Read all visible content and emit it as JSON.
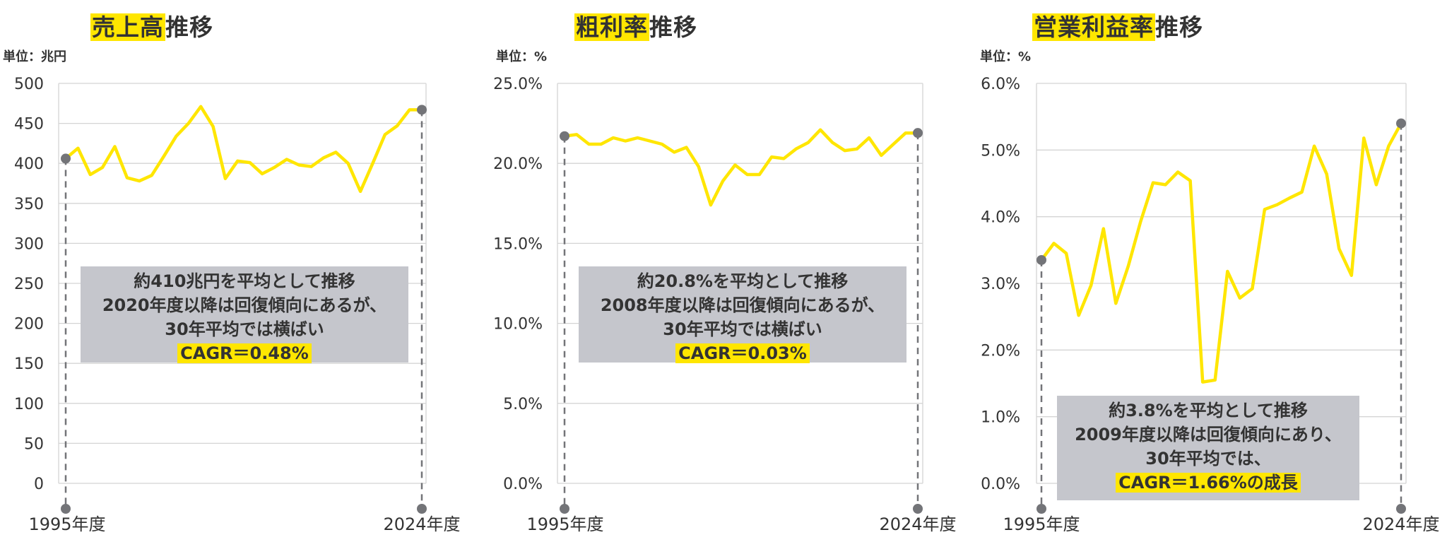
{
  "colors": {
    "line": "#ffe600",
    "highlight": "#ffe600",
    "marker": "#737478",
    "note_bg": "#c5c6cc",
    "text": "#333333",
    "grid": "#d4d4d4"
  },
  "x_labels": {
    "start": "1995年度",
    "end": "2024年度"
  },
  "panels": [
    {
      "title_highlight": "売上高",
      "title_rest": "推移",
      "unit": "単位：兆円",
      "note": {
        "lines": [
          "約410兆円を平均として推移",
          "2020年度以降は回復傾向にあるが、",
          "30年平均では横ばい"
        ],
        "cagr": "CAGR＝0.48%"
      }
    },
    {
      "title_highlight": "粗利率",
      "title_rest": "推移",
      "unit": "単位：%",
      "note": {
        "lines": [
          "約20.8%を平均として推移",
          "2008年度以降は回復傾向にあるが、",
          "30年平均では横ばい"
        ],
        "cagr": "CAGR＝0.03%"
      }
    },
    {
      "title_highlight": "営業利益率",
      "title_rest": "推移",
      "unit": "単位：%",
      "note": {
        "lines": [
          "約3.8%を平均として推移",
          "2009年度以降は回復傾向にあり、",
          "30年平均では、"
        ],
        "cagr": "CAGR＝1.66%の成長"
      }
    }
  ],
  "chart_data": [
    {
      "type": "line",
      "title": "売上高推移",
      "ylabel": "単位：兆円",
      "x_start": 1995,
      "x_end": 2024,
      "ylim": [
        0,
        500
      ],
      "yticks": [
        0,
        50,
        100,
        150,
        200,
        250,
        300,
        350,
        400,
        450,
        500
      ],
      "ytick_labels": [
        "0",
        "50",
        "100",
        "150",
        "200",
        "250",
        "300",
        "350",
        "400",
        "450",
        "500"
      ],
      "grid": true,
      "values": [
        406,
        419,
        386,
        395,
        421,
        382,
        378,
        385,
        409,
        434,
        450,
        471,
        446,
        381,
        403,
        401,
        387,
        395,
        405,
        398,
        396,
        407,
        414,
        400,
        365,
        400,
        436,
        447,
        467,
        467
      ]
    },
    {
      "type": "line",
      "title": "粗利率推移",
      "ylabel": "単位：%",
      "x_start": 1995,
      "x_end": 2024,
      "ylim": [
        0,
        25
      ],
      "yticks": [
        0,
        5,
        10,
        15,
        20,
        25
      ],
      "ytick_labels": [
        "0.0%",
        "5.0%",
        "10.0%",
        "15.0%",
        "20.0%",
        "25.0%"
      ],
      "grid": true,
      "values": [
        21.7,
        21.8,
        21.2,
        21.2,
        21.6,
        21.4,
        21.6,
        21.4,
        21.2,
        20.7,
        21.0,
        19.8,
        17.4,
        18.9,
        19.9,
        19.3,
        19.3,
        20.4,
        20.3,
        20.9,
        21.3,
        22.1,
        21.3,
        20.8,
        20.9,
        21.6,
        20.5,
        21.2,
        21.9,
        21.9
      ]
    },
    {
      "type": "line",
      "title": "営業利益率推移",
      "ylabel": "単位：%",
      "x_start": 1995,
      "x_end": 2024,
      "ylim": [
        0,
        6
      ],
      "yticks": [
        0,
        1,
        2,
        3,
        4,
        5,
        6
      ],
      "ytick_labels": [
        "0.0%",
        "1.0%",
        "2.0%",
        "3.0%",
        "4.0%",
        "5.0%",
        "6.0%"
      ],
      "grid": true,
      "values": [
        3.35,
        3.6,
        3.45,
        2.52,
        2.97,
        3.82,
        2.7,
        3.26,
        3.93,
        4.51,
        4.48,
        4.67,
        4.54,
        1.52,
        1.55,
        3.18,
        2.78,
        2.92,
        4.11,
        4.18,
        4.28,
        4.37,
        5.06,
        4.64,
        3.52,
        3.12,
        5.18,
        4.48,
        5.06,
        5.4
      ]
    }
  ]
}
